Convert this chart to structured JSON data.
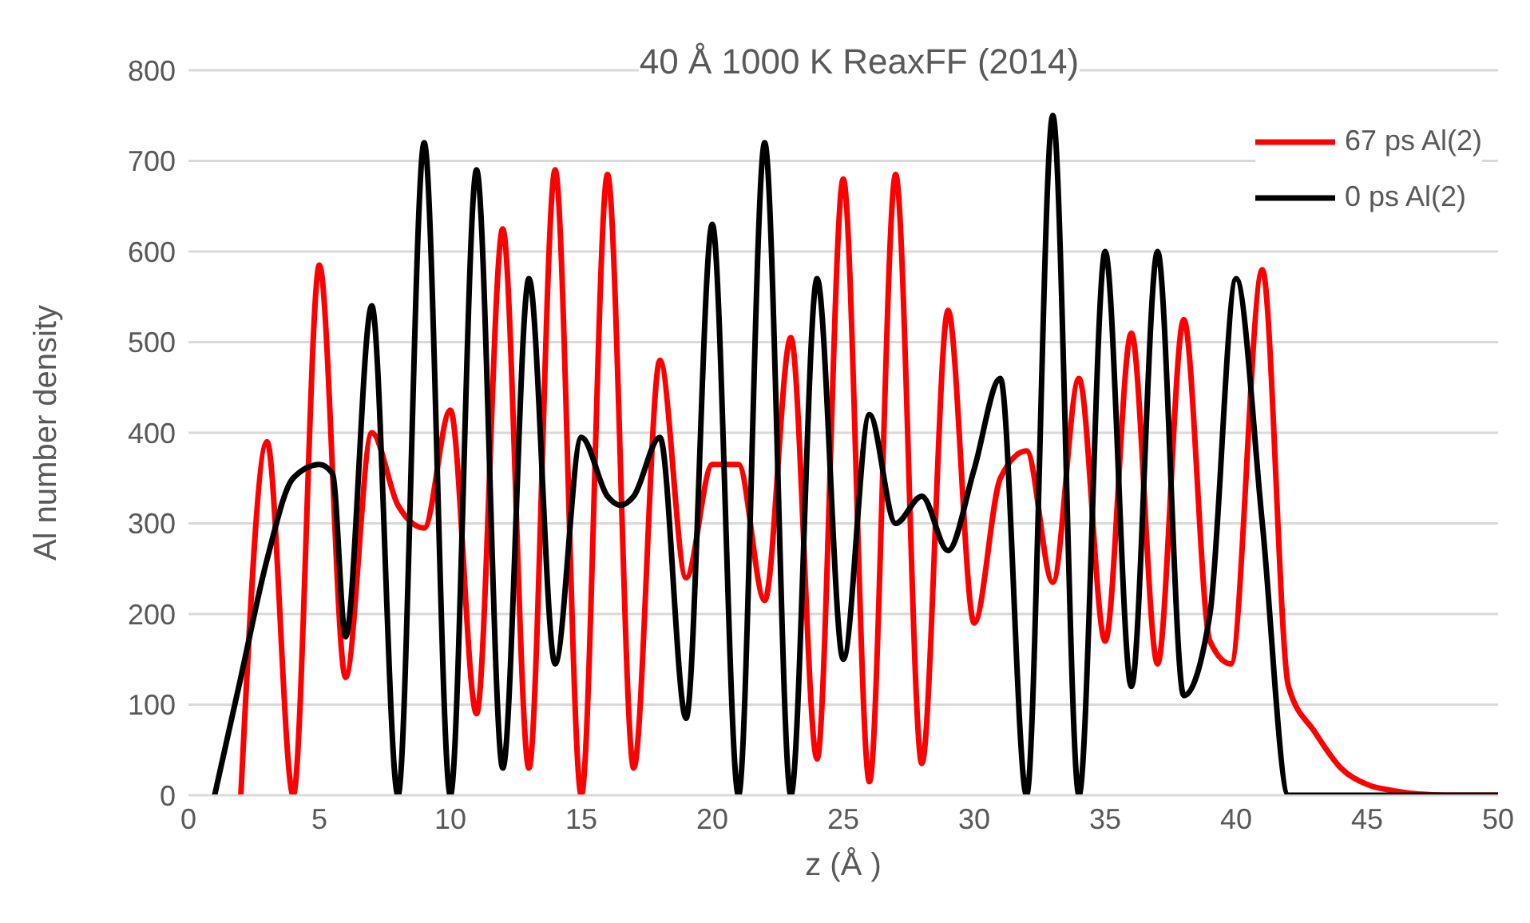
{
  "chart_data": {
    "type": "line",
    "title": "40 Å 1000 K ReaxFF (2014)",
    "xlabel": "z (Å )",
    "ylabel": "Al number density",
    "xlim": [
      0,
      50
    ],
    "xticks": [
      0,
      5,
      10,
      15,
      20,
      25,
      30,
      35,
      40,
      45,
      50
    ],
    "ylim": [
      0,
      800
    ],
    "yticks": [
      0,
      100,
      200,
      300,
      400,
      500,
      600,
      700,
      800
    ],
    "grid": "y",
    "legend": "top right",
    "marker": "none",
    "line_style": "solid",
    "series": [
      {
        "name": "67 ps Al(2)",
        "color": "#ff0000",
        "x": [
          2,
          3,
          4,
          5,
          6,
          7,
          8,
          9,
          10,
          11,
          12,
          13,
          14,
          15,
          16,
          17,
          18,
          19,
          20,
          21,
          22,
          23,
          24,
          25,
          26,
          27,
          28,
          29,
          30,
          31,
          32,
          33,
          34,
          35,
          36,
          37,
          38,
          39,
          39.8,
          41,
          42,
          43,
          44,
          45,
          46,
          48,
          50
        ],
        "values": [
          0,
          390,
          0,
          585,
          130,
          400,
          320,
          295,
          425,
          90,
          625,
          30,
          690,
          0,
          685,
          30,
          480,
          240,
          365,
          365,
          215,
          505,
          40,
          680,
          15,
          685,
          35,
          535,
          190,
          350,
          380,
          235,
          460,
          170,
          510,
          145,
          525,
          170,
          145,
          580,
          120,
          70,
          30,
          12,
          5,
          0,
          0
        ]
      },
      {
        "name": "0 ps Al(2)",
        "color": "#000000",
        "x": [
          1,
          2,
          3,
          4,
          5,
          5.5,
          6,
          7,
          8,
          9,
          10,
          11,
          12,
          13,
          14,
          15,
          16,
          16.5,
          17,
          18,
          19,
          20,
          21,
          22,
          23,
          24,
          25,
          26,
          27,
          28,
          29,
          30,
          31,
          32,
          33,
          34,
          35,
          36,
          37,
          38,
          39,
          40,
          41,
          42,
          43,
          50
        ],
        "values": [
          0,
          130,
          260,
          350,
          365,
          355,
          175,
          540,
          0,
          720,
          0,
          690,
          30,
          570,
          145,
          395,
          330,
          320,
          330,
          395,
          85,
          630,
          0,
          720,
          0,
          570,
          150,
          420,
          300,
          330,
          270,
          360,
          460,
          0,
          750,
          0,
          600,
          120,
          600,
          110,
          200,
          570,
          300,
          0,
          0,
          0
        ]
      }
    ]
  }
}
